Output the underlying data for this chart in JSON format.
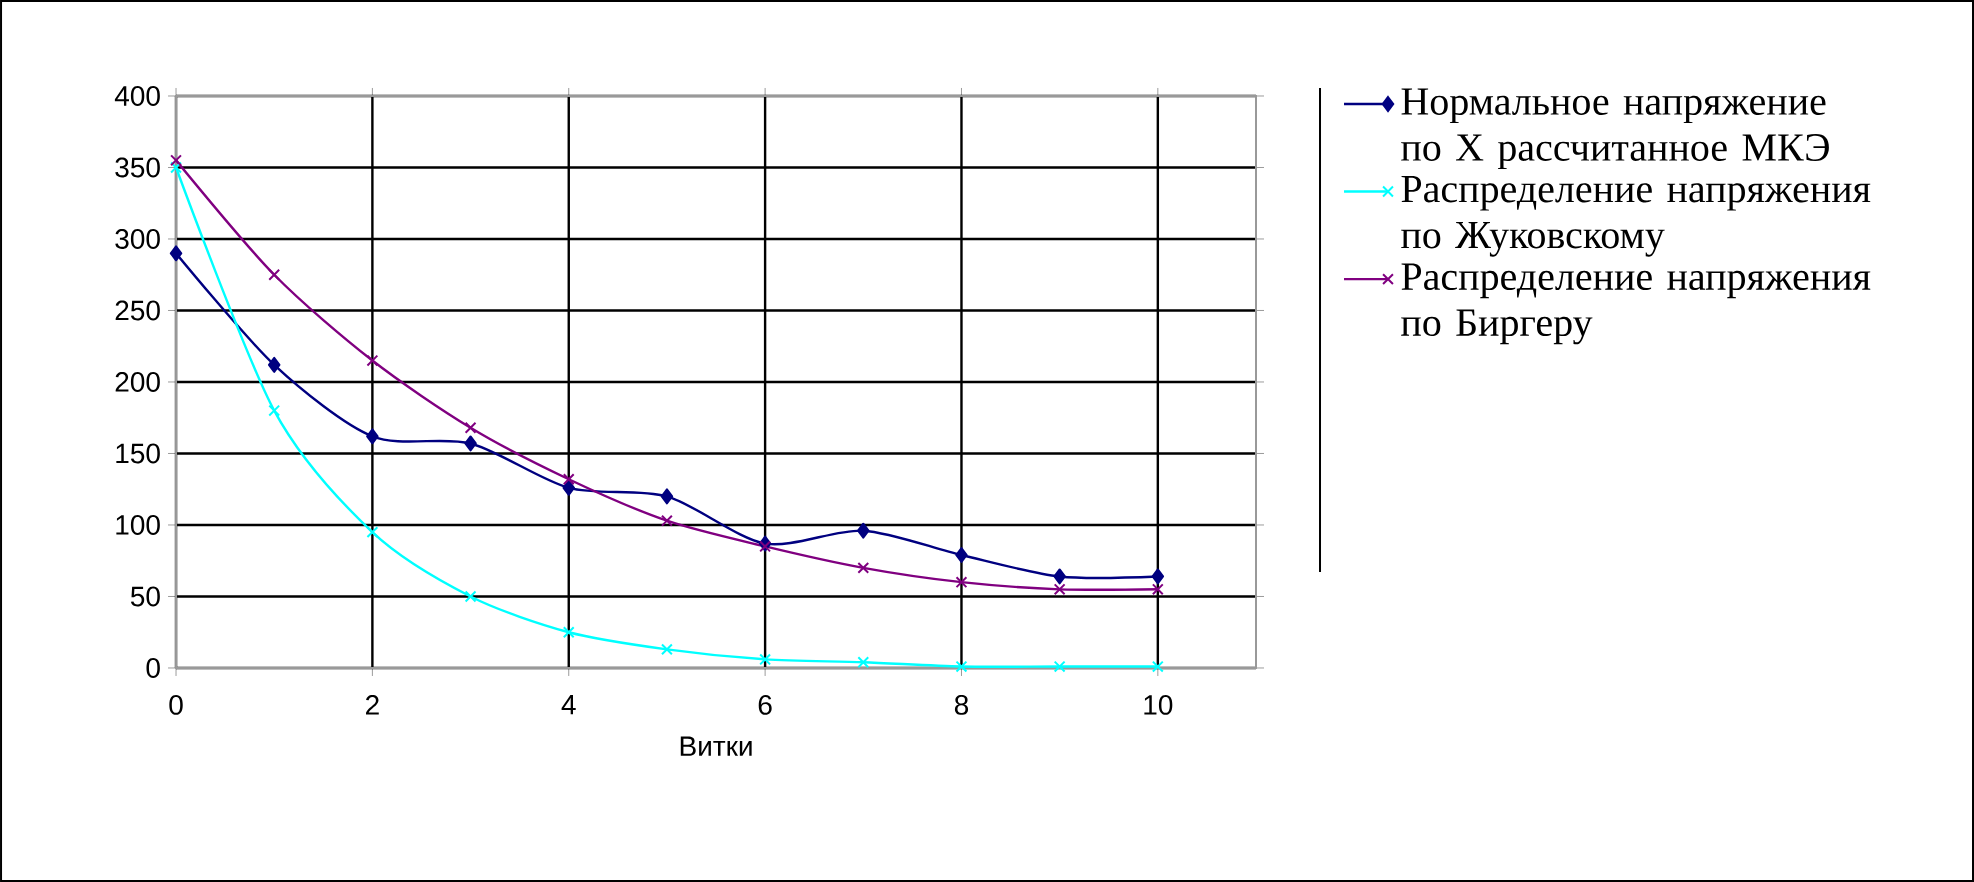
{
  "chart_data": {
    "type": "line",
    "xlabel": "Витки",
    "x": [
      0,
      1,
      2,
      3,
      4,
      5,
      6,
      7,
      8,
      9,
      10
    ],
    "xlim": [
      0,
      11
    ],
    "xticks": [
      0,
      2,
      4,
      6,
      8,
      10
    ],
    "ylim": [
      0,
      400
    ],
    "yticks": [
      0,
      50,
      100,
      150,
      200,
      250,
      300,
      350,
      400
    ],
    "grid": true,
    "legend": "right",
    "series": [
      {
        "name": "Нормальное напряжение по X рассчитанное МКЭ",
        "color": "#000080",
        "marker": "diamond",
        "values": [
          290,
          212,
          162,
          157,
          126,
          120,
          87,
          96,
          79,
          64,
          64
        ]
      },
      {
        "name": "Распределение напряжения по Жуковскому",
        "color": "#00ffff",
        "marker": "cross",
        "values": [
          350,
          180,
          95,
          50,
          25,
          13,
          6,
          4,
          1,
          1,
          1
        ]
      },
      {
        "name": "Распределение напряжения по Биргеру",
        "color": "#800080",
        "marker": "cross",
        "values": [
          355,
          275,
          215,
          168,
          132,
          103,
          85,
          70,
          60,
          55,
          55
        ]
      }
    ]
  }
}
